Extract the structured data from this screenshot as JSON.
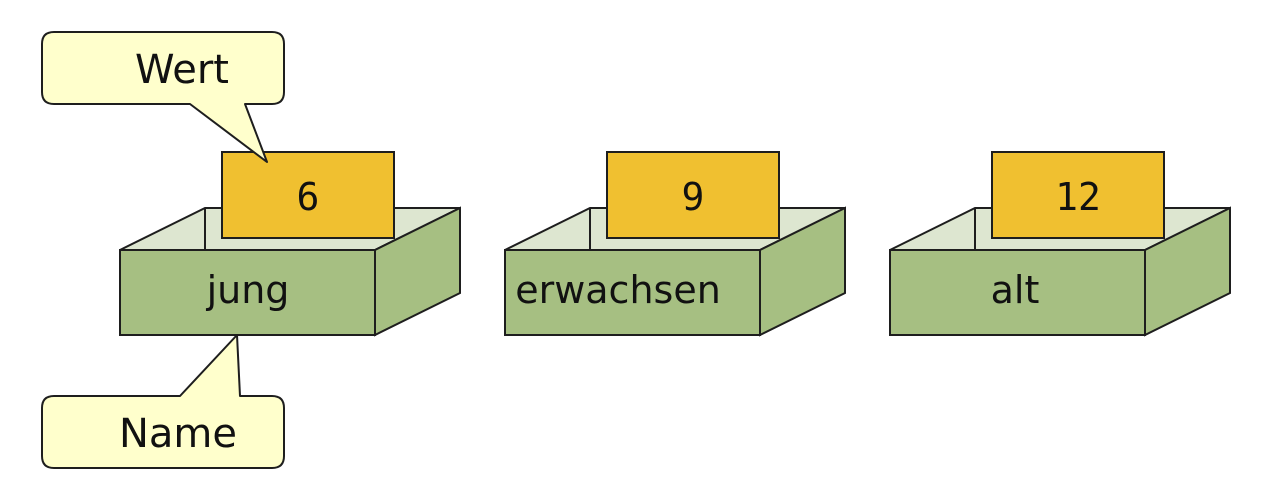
{
  "callouts": {
    "value": "Wert",
    "name": "Name"
  },
  "boxes": [
    {
      "name": "jung",
      "value": "6"
    },
    {
      "name": "erwachsen",
      "value": "9"
    },
    {
      "name": "alt",
      "value": "12"
    }
  ],
  "colors": {
    "callout_fill": "#ffffcc",
    "box_front": "#a6bf82",
    "box_inner": "#dde6d0",
    "card": "#f0c030",
    "stroke": "#1e1e1e"
  }
}
